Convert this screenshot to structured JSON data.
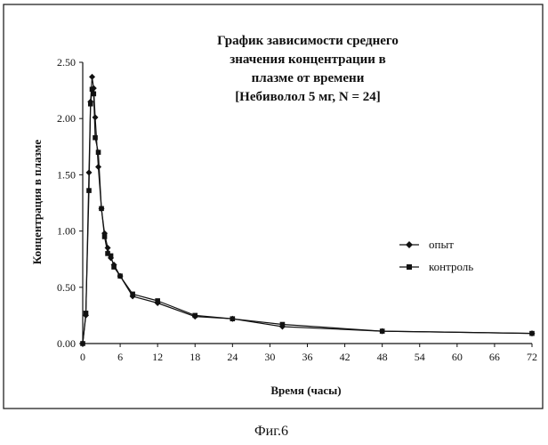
{
  "chart_data": {
    "type": "line",
    "title_lines": [
      "График зависимости среднего",
      "значения концентрации в",
      "плазме от времени",
      "[Небиволол 5 мг, N = 24]"
    ],
    "xlabel": "Время (часы)",
    "ylabel": "Концентрация в плазме",
    "xlim": [
      0,
      72
    ],
    "ylim": [
      0,
      2.5
    ],
    "x_ticks": [
      "0",
      "6",
      "12",
      "18",
      "24",
      "30",
      "36",
      "42",
      "48",
      "54",
      "60",
      "66",
      "72"
    ],
    "y_ticks": [
      "0.00",
      "0.50",
      "1.00",
      "1.50",
      "2.00",
      "2.50"
    ],
    "legend_position": "right",
    "series": [
      {
        "name": "опыт",
        "marker": "diamond",
        "x": [
          0,
          0.5,
          1,
          1.25,
          1.5,
          1.75,
          2,
          2.5,
          3,
          3.5,
          4,
          4.5,
          5,
          6,
          8,
          12,
          18,
          24,
          32,
          48,
          72
        ],
        "y": [
          0,
          0.25,
          1.52,
          2.15,
          2.37,
          2.27,
          2.01,
          1.57,
          1.2,
          0.98,
          0.85,
          0.76,
          0.7,
          0.6,
          0.42,
          0.36,
          0.24,
          0.22,
          0.15,
          0.11,
          0.09
        ]
      },
      {
        "name": "контроль",
        "marker": "square",
        "x": [
          0,
          0.5,
          1,
          1.25,
          1.5,
          1.75,
          2,
          2.5,
          3,
          3.5,
          4,
          4.5,
          5,
          6,
          8,
          12,
          18,
          24,
          32,
          48,
          72
        ],
        "y": [
          0,
          0.27,
          1.36,
          2.13,
          2.26,
          2.22,
          1.83,
          1.7,
          1.2,
          0.95,
          0.8,
          0.78,
          0.68,
          0.6,
          0.44,
          0.38,
          0.25,
          0.22,
          0.17,
          0.11,
          0.09
        ]
      }
    ]
  },
  "caption": "Фиг.6"
}
